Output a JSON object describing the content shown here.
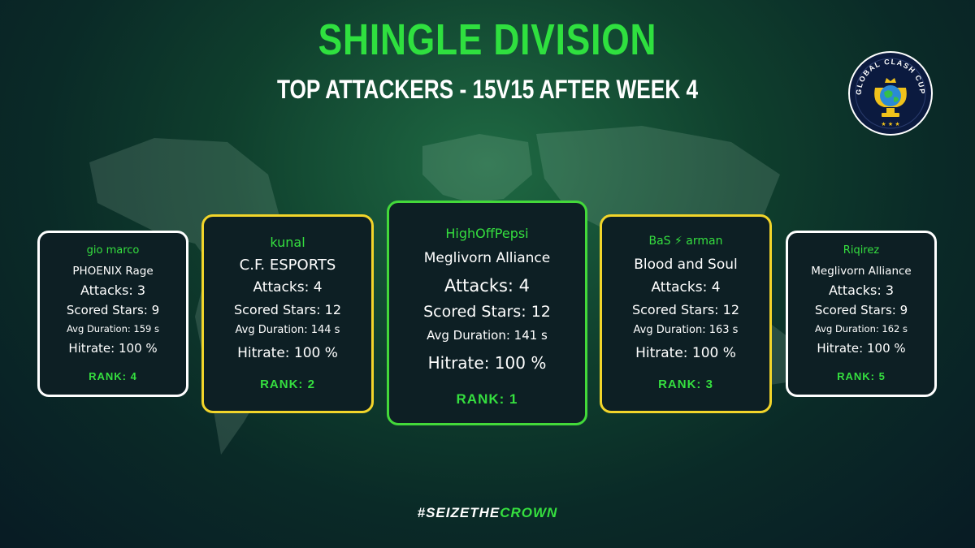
{
  "header": {
    "title": "SHINGLE DIVISION",
    "subtitle": "TOP ATTACKERS - 15V15 AFTER WEEK 4"
  },
  "logo": {
    "text": "GLOBAL CLASH CUP",
    "icon": "trophy-globe-logo"
  },
  "cards": [
    {
      "player": "gio marco",
      "clan": "PHOENIX Rage",
      "attacks": "Attacks: 3",
      "stars": "Scored Stars: 9",
      "duration": "Avg Duration: 159 s",
      "hitrate": "Hitrate: 100 %",
      "rank": "RANK: 4",
      "border": "#ffffff"
    },
    {
      "player": "kunal",
      "clan": "C.F. ESPORTS",
      "attacks": "Attacks: 4",
      "stars": "Scored Stars: 12",
      "duration": "Avg Duration: 144 s",
      "hitrate": "Hitrate: 100 %",
      "rank": "RANK: 2",
      "border": "#f2d52a"
    },
    {
      "player": "HighOffPepsi",
      "clan": "Meglivorn Alliance",
      "attacks": "Attacks: 4",
      "stars": "Scored Stars: 12",
      "duration": "Avg Duration: 141 s",
      "hitrate": "Hitrate: 100 %",
      "rank": "RANK: 1",
      "border": "#43d93a"
    },
    {
      "player": "BaS ⚡ arman",
      "clan": "Blood and Soul",
      "attacks": "Attacks: 4",
      "stars": "Scored Stars: 12",
      "duration": "Avg Duration: 163 s",
      "hitrate": "Hitrate: 100 %",
      "rank": "RANK: 3",
      "border": "#f2d52a"
    },
    {
      "player": "Riqirez",
      "clan": "Meglivorn Alliance",
      "attacks": "Attacks: 3",
      "stars": "Scored Stars: 9",
      "duration": "Avg Duration: 162 s",
      "hitrate": "Hitrate: 100 %",
      "rank": "RANK: 5",
      "border": "#ffffff"
    }
  ],
  "footer": {
    "hashtag_a": "#SEIZETHE",
    "hashtag_b": "CROWN"
  },
  "colors": {
    "accent_green": "#35df3f",
    "silver_border": "#ffffff",
    "gold_border": "#f2d52a"
  }
}
